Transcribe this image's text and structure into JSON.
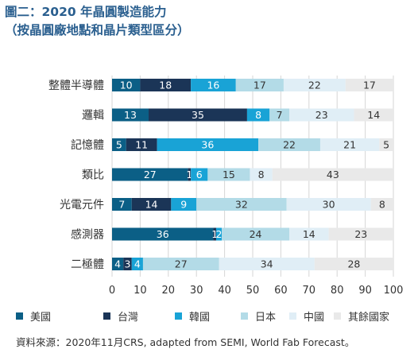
{
  "title_line1": "圖二：2020 年晶圓製造能力",
  "title_line2": "（按晶圓廠地點和晶片類型區分）",
  "source": "資料來源：2020年11月CRS, adapted from SEMI, World Fab Forecast。",
  "chart_data": {
    "type": "bar",
    "orientation": "horizontal",
    "stacked": true,
    "categories": [
      "整體半導體",
      "邏輯",
      "記憶體",
      "類比",
      "光電元件",
      "感測器",
      "二極體"
    ],
    "series": [
      {
        "name": "美國",
        "color": "#0b5f86",
        "label_color": "#ffffff",
        "values": [
          10,
          13,
          5,
          27,
          7,
          36,
          4
        ]
      },
      {
        "name": "台灣",
        "color": "#1b3557",
        "label_color": "#ffffff",
        "values": [
          18,
          35,
          11,
          1,
          14,
          1,
          3
        ]
      },
      {
        "name": "韓國",
        "color": "#19a3d6",
        "label_color": "#ffffff",
        "values": [
          16,
          8,
          36,
          6,
          9,
          2,
          4
        ]
      },
      {
        "name": "日本",
        "color": "#b3dbe7",
        "label_color": "#333333",
        "values": [
          17,
          7,
          22,
          15,
          32,
          24,
          27
        ]
      },
      {
        "name": "中國",
        "color": "#e0eef6",
        "label_color": "#333333",
        "values": [
          22,
          23,
          21,
          8,
          30,
          14,
          34
        ]
      },
      {
        "name": "其餘國家",
        "color": "#e9e9e9",
        "label_color": "#333333",
        "values": [
          17,
          14,
          5,
          43,
          8,
          23,
          28
        ]
      }
    ],
    "xlim": [
      0,
      100
    ],
    "xticks": [
      0,
      10,
      20,
      30,
      40,
      50,
      60,
      70,
      80,
      90,
      100
    ],
    "grid": true,
    "legend_position": "bottom"
  }
}
